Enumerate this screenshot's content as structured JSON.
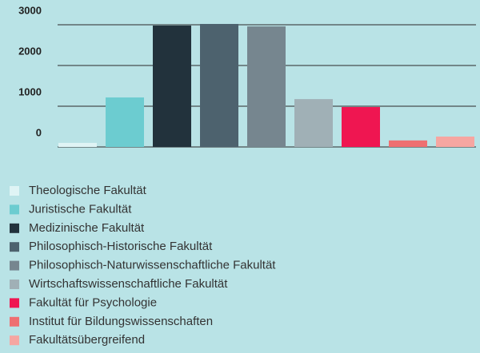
{
  "chart_data": {
    "type": "bar",
    "categories": [
      "Theologische Fakultät",
      "Juristische Fakultät",
      "Medizinische Fakultät",
      "Philosophisch-Historische Fakultät",
      "Philosophisch-Naturwissenschaftliche Fakultät",
      "Wirtschaftswissenschaftliche Fakultät",
      "Fakultät für Psychologie",
      "Institut für Bildungswissenschaften",
      "Fakultätsübergreifend"
    ],
    "values": [
      100,
      1215,
      2980,
      3020,
      2960,
      1175,
      980,
      160,
      255
    ],
    "colors": [
      "#dff4f5",
      "#6cccd0",
      "#22323c",
      "#4d626e",
      "#76868f",
      "#a0b0b6",
      "#ef1651",
      "#ee6f71",
      "#f6a6a1"
    ],
    "ylim": [
      0,
      3000
    ],
    "yticks": [
      0,
      1000,
      2000,
      3000
    ],
    "grid": true
  }
}
